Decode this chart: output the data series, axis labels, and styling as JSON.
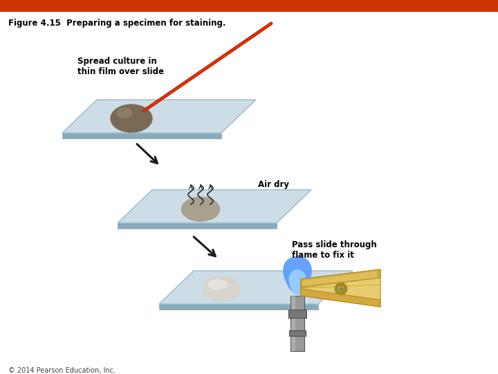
{
  "title": "Figure 4.15  Preparing a specimen for staining.",
  "copyright": "© 2014 Pearson Education, Inc.",
  "header_color": "#cc3300",
  "background_color": "#ffffff",
  "slide_color_top": "#ccdde8",
  "slide_color_side": "#8aaabb",
  "slide_edge_color": "#99bbc8",
  "specimen1_color": "#7a6a55",
  "specimen1_hi": "#9a8a75",
  "specimen2_color": "#aaa090",
  "specimen3_color": "#d8d4ce",
  "label1": "Spread culture in\nthin film over slide",
  "label2": "Air dry",
  "label3": "Pass slide through\nflame to fix it",
  "arrow_color": "#1a1a1a",
  "needle_color_dark": "#bb2200",
  "needle_color_light": "#ee3300",
  "wavy_color": "#333333",
  "flame_outer": "#5599ff",
  "flame_inner": "#aaddff",
  "flame_base": "#3366dd",
  "burner_dark": "#777777",
  "burner_mid": "#999999",
  "burner_light": "#bbbbbb",
  "clamp_dark": "#b89020",
  "clamp_mid": "#d4aa40",
  "clamp_light": "#e8cc70",
  "clamp_screw": "#998833"
}
